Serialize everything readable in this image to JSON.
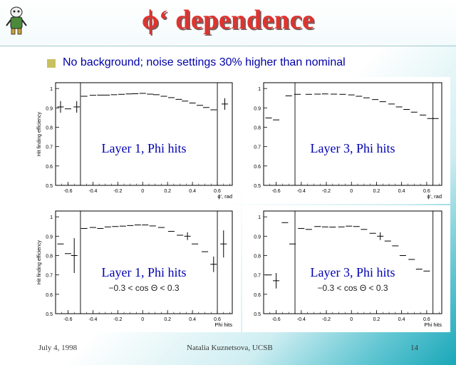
{
  "slide": {
    "title": "ϕ‘ dependence",
    "subtitle": "No background; noise settings 30% higher than nominal",
    "footer_left": "July 4, 1998",
    "footer_center": "Natalia Kuznetsova, UCSB",
    "footer_right": "14",
    "colors": {
      "title": "#e0332e",
      "subtitle": "#0000a8",
      "label": "#0000b0",
      "background_accent": "#19a7b8",
      "bullet": "#c8c060"
    }
  },
  "chart_data": [
    {
      "type": "scatter",
      "panel": "top-left",
      "label": "Layer 1, Phi hits",
      "cut": "",
      "ylabel": "Hit finding efficiency",
      "xlabel": "ϕ', rad",
      "xlim": [
        -0.7,
        0.72
      ],
      "ylim": [
        0.5,
        1.03
      ],
      "xticks": [
        "-0.6",
        "-0.4",
        "-0.2",
        "0",
        "0.2",
        "0.4",
        "0.6"
      ],
      "yticks": [
        "0.5",
        "0.6",
        "0.7",
        "0.8",
        "0.9",
        "1"
      ],
      "vlines": [
        -0.5,
        0.6
      ],
      "x": [
        -0.66,
        -0.6,
        -0.53,
        -0.47,
        -0.4,
        -0.34,
        -0.29,
        -0.23,
        -0.17,
        -0.11,
        -0.06,
        0.0,
        0.06,
        0.11,
        0.17,
        0.23,
        0.29,
        0.34,
        0.4,
        0.46,
        0.51,
        0.57,
        0.66
      ],
      "y": [
        0.905,
        0.895,
        0.905,
        0.96,
        0.965,
        0.966,
        0.966,
        0.968,
        0.97,
        0.972,
        0.973,
        0.975,
        0.971,
        0.968,
        0.96,
        0.953,
        0.944,
        0.935,
        0.925,
        0.913,
        0.902,
        0.89,
        0.92
      ],
      "yerr": [
        0.03,
        0.0,
        0.03,
        0.0,
        0.0,
        0.0,
        0.0,
        0.0,
        0.0,
        0.0,
        0.0,
        0.0,
        0.0,
        0.0,
        0.0,
        0.0,
        0.0,
        0.0,
        0.0,
        0.0,
        0.0,
        0.0,
        0.03
      ]
    },
    {
      "type": "scatter",
      "panel": "top-right",
      "label": "Layer 3, Phi hits",
      "cut": "",
      "ylabel": "",
      "xlabel": "ϕ', rad",
      "xlim": [
        -0.7,
        0.72
      ],
      "ylim": [
        0.5,
        1.03
      ],
      "xticks": [
        "-0.6",
        "-0.4",
        "-0.2",
        "0",
        "0.2",
        "0.4",
        "0.6"
      ],
      "yticks": [
        "0.5",
        "0.6",
        "0.7",
        "0.8",
        "0.9",
        "1"
      ],
      "vlines": [
        -0.45,
        0.65
      ],
      "x": [
        -0.66,
        -0.6,
        -0.5,
        -0.43,
        -0.34,
        -0.27,
        -0.21,
        -0.14,
        -0.07,
        0.0,
        0.06,
        0.12,
        0.19,
        0.25,
        0.32,
        0.38,
        0.44,
        0.5,
        0.57,
        0.63,
        0.67
      ],
      "y": [
        0.848,
        0.838,
        0.962,
        0.97,
        0.97,
        0.971,
        0.972,
        0.971,
        0.97,
        0.967,
        0.96,
        0.952,
        0.943,
        0.932,
        0.92,
        0.905,
        0.892,
        0.878,
        0.863,
        0.845,
        0.845
      ],
      "yerr": [
        0.0,
        0.0,
        0.0,
        0.0,
        0.0,
        0.0,
        0.0,
        0.0,
        0.0,
        0.0,
        0.0,
        0.0,
        0.0,
        0.0,
        0.0,
        0.0,
        0.0,
        0.0,
        0.0,
        0.0,
        0.0
      ]
    },
    {
      "type": "scatter",
      "panel": "bottom-left",
      "label": "Layer 1, Phi hits",
      "cut": "−0.3 < cos Θ < 0.3",
      "ylabel": "Hit finding efficiency",
      "xlabel": "Phi hits",
      "xlim": [
        -0.7,
        0.72
      ],
      "ylim": [
        0.5,
        1.03
      ],
      "xticks": [
        "-0.6",
        "-0.4",
        "-0.2",
        "0",
        "0.2",
        "0.4",
        "0.6"
      ],
      "yticks": [
        "0.5",
        "0.6",
        "0.7",
        "0.8",
        "0.9",
        "1"
      ],
      "vlines": [
        -0.5,
        0.6
      ],
      "x": [
        -0.66,
        -0.6,
        -0.55,
        -0.47,
        -0.4,
        -0.34,
        -0.28,
        -0.22,
        -0.16,
        -0.1,
        -0.04,
        0.02,
        0.08,
        0.15,
        0.23,
        0.3,
        0.36,
        0.42,
        0.5,
        0.57,
        0.65
      ],
      "y": [
        0.86,
        0.81,
        0.8,
        0.94,
        0.945,
        0.94,
        0.948,
        0.95,
        0.952,
        0.955,
        0.958,
        0.958,
        0.953,
        0.945,
        0.925,
        0.905,
        0.9,
        0.86,
        0.82,
        0.755,
        0.86
      ],
      "yerr": [
        0.0,
        0.0,
        0.09,
        0.0,
        0.0,
        0.0,
        0.0,
        0.0,
        0.0,
        0.0,
        0.0,
        0.0,
        0.0,
        0.0,
        0.0,
        0.0,
        0.02,
        0.0,
        0.0,
        0.04,
        0.07
      ]
    },
    {
      "type": "scatter",
      "panel": "bottom-right",
      "label": "Layer 3, Phi hits",
      "cut": "−0.3 < cos Θ < 0.3",
      "ylabel": "",
      "xlabel": "Phi hits",
      "xlim": [
        -0.7,
        0.72
      ],
      "ylim": [
        0.5,
        1.03
      ],
      "xticks": [
        "-0.6",
        "-0.4",
        "-0.2",
        "0",
        "0.2",
        "0.4",
        "0.6"
      ],
      "yticks": [
        "0.5",
        "0.6",
        "0.7",
        "0.8",
        "0.9",
        "1"
      ],
      "vlines": [
        -0.45,
        0.65
      ],
      "x": [
        -0.66,
        -0.6,
        -0.53,
        -0.47,
        -0.4,
        -0.34,
        -0.27,
        -0.21,
        -0.15,
        -0.08,
        -0.02,
        0.04,
        0.1,
        0.17,
        0.23,
        0.29,
        0.35,
        0.41,
        0.48,
        0.54,
        0.6
      ],
      "y": [
        0.7,
        0.67,
        0.97,
        0.86,
        0.94,
        0.935,
        0.95,
        0.948,
        0.947,
        0.948,
        0.952,
        0.95,
        0.935,
        0.915,
        0.9,
        0.875,
        0.85,
        0.8,
        0.78,
        0.73,
        0.72
      ],
      "yerr": [
        0.0,
        0.04,
        0.0,
        0.0,
        0.0,
        0.0,
        0.0,
        0.0,
        0.0,
        0.0,
        0.0,
        0.0,
        0.0,
        0.0,
        0.02,
        0.0,
        0.0,
        0.0,
        0.0,
        0.0,
        0.0
      ]
    }
  ]
}
